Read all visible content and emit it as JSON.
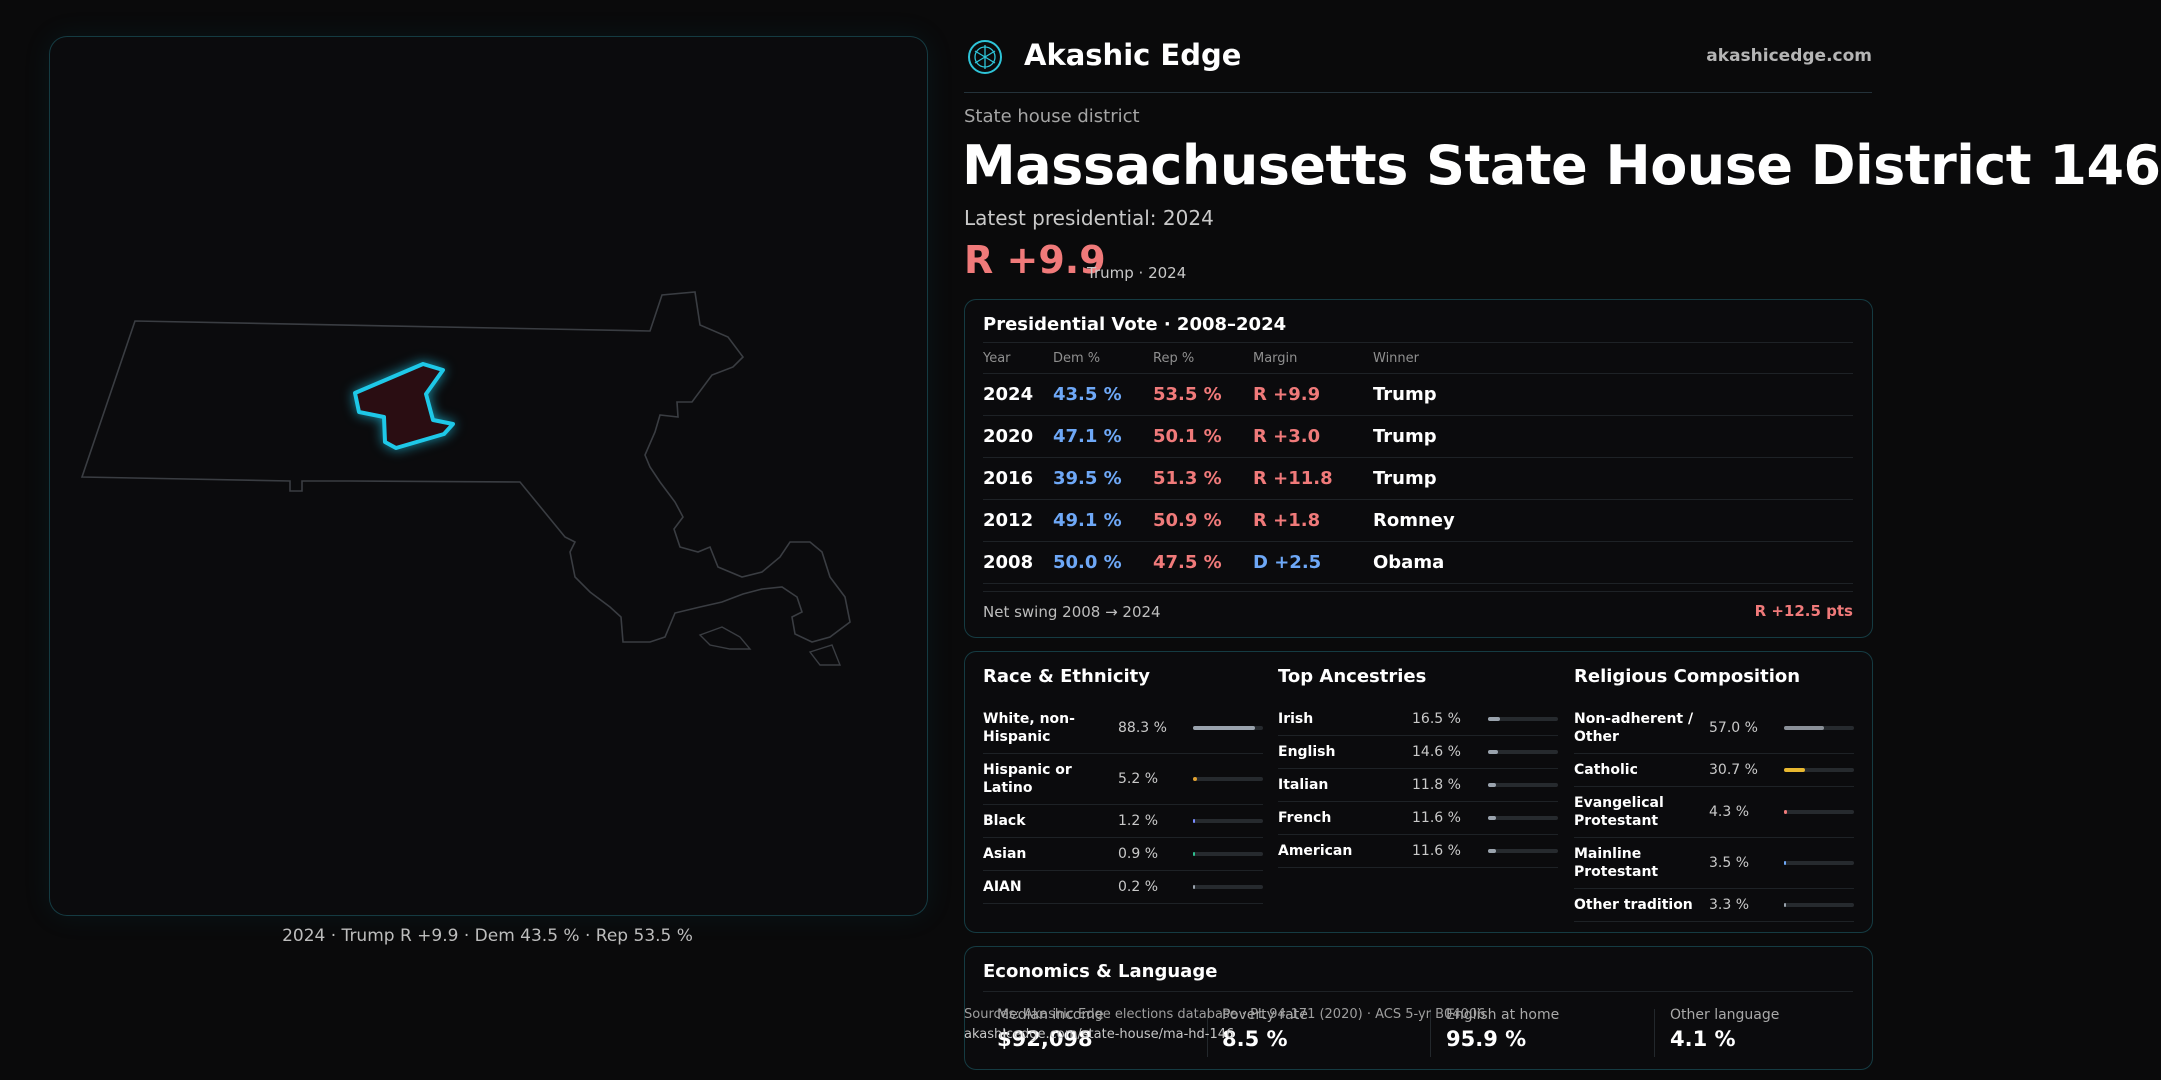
{
  "brand": {
    "name": "Akashic Edge",
    "site": "akashicedge.com",
    "logo_icon": "akashic-logo-icon"
  },
  "district": {
    "type_label": "State house district",
    "title": "Massachusetts State House District 146",
    "latest_label": "Latest presidential: 2024",
    "margin": "R +9.9",
    "margin_sub": "Trump · 2024"
  },
  "map": {
    "caption": "2024 · Trump R +9.9 · Dem 43.5 % · Rep 53.5 %",
    "highlight_color": "#1ec8e8"
  },
  "presidential": {
    "title": "Presidential Vote · 2008–2024",
    "headers": {
      "year": "Year",
      "dem": "Dem %",
      "rep": "Rep %",
      "margin": "Margin",
      "winner": "Winner"
    },
    "rows": [
      {
        "year": "2024",
        "dem": "43.5 %",
        "rep": "53.5 %",
        "margin": "R +9.9",
        "party": "R",
        "winner": "Trump"
      },
      {
        "year": "2020",
        "dem": "47.1 %",
        "rep": "50.1 %",
        "margin": "R +3.0",
        "party": "R",
        "winner": "Trump"
      },
      {
        "year": "2016",
        "dem": "39.5 %",
        "rep": "51.3 %",
        "margin": "R +11.8",
        "party": "R",
        "winner": "Trump"
      },
      {
        "year": "2012",
        "dem": "49.1 %",
        "rep": "50.9 %",
        "margin": "R +1.8",
        "party": "R",
        "winner": "Romney"
      },
      {
        "year": "2008",
        "dem": "50.0 %",
        "rep": "47.5 %",
        "margin": "D +2.5",
        "party": "D",
        "winner": "Obama"
      }
    ],
    "swing_label": "Net swing 2008 → 2024",
    "swing_value": "R +12.5 pts"
  },
  "colors": {
    "dem": "#6ea8f7",
    "rep": "#f07a7a"
  },
  "race": {
    "title": "Race & Ethnicity",
    "items": [
      {
        "label": "White, non-Hispanic",
        "pct": "88.3 %",
        "value": 88.3,
        "color": "#9aa3ad"
      },
      {
        "label": "Hispanic or Latino",
        "pct": "5.2 %",
        "value": 5.2,
        "color": "#e0a030"
      },
      {
        "label": "Black",
        "pct": "1.2 %",
        "value": 1.2,
        "color": "#7a8cff"
      },
      {
        "label": "Asian",
        "pct": "0.9 %",
        "value": 0.9,
        "color": "#2fbf8f"
      },
      {
        "label": "AIAN",
        "pct": "0.2 %",
        "value": 0.2,
        "color": "#9aa3ad"
      }
    ]
  },
  "ancestry": {
    "title": "Top Ancestries",
    "items": [
      {
        "label": "Irish",
        "pct": "16.5 %",
        "value": 16.5,
        "color": "#9aa3ad"
      },
      {
        "label": "English",
        "pct": "14.6 %",
        "value": 14.6,
        "color": "#9aa3ad"
      },
      {
        "label": "Italian",
        "pct": "11.8 %",
        "value": 11.8,
        "color": "#9aa3ad"
      },
      {
        "label": "French",
        "pct": "11.6 %",
        "value": 11.6,
        "color": "#9aa3ad"
      },
      {
        "label": "American",
        "pct": "11.6 %",
        "value": 11.6,
        "color": "#9aa3ad"
      }
    ]
  },
  "religion": {
    "title": "Religious Composition",
    "items": [
      {
        "label": "Non-adherent / Other",
        "pct": "57.0 %",
        "value": 57.0,
        "color": "#8a9098"
      },
      {
        "label": "Catholic",
        "pct": "30.7 %",
        "value": 30.7,
        "color": "#e8b830"
      },
      {
        "label": "Evangelical Protestant",
        "pct": "4.3 %",
        "value": 4.3,
        "color": "#f07a7a"
      },
      {
        "label": "Mainline Protestant",
        "pct": "3.5 %",
        "value": 3.5,
        "color": "#6ea8f7"
      },
      {
        "label": "Other tradition",
        "pct": "3.3 %",
        "value": 3.3,
        "color": "#9aa3ad"
      }
    ]
  },
  "economics": {
    "title": "Economics & Language",
    "metrics": [
      {
        "label": "Median income",
        "value": "$92,098"
      },
      {
        "label": "Poverty rate",
        "value": "8.5 %"
      },
      {
        "label": "English at home",
        "value": "95.9 %"
      },
      {
        "label": "Other language",
        "value": "4.1 %"
      }
    ]
  },
  "sources": {
    "text": "Sources: Akashic Edge elections database · PL 94-171 (2020) · ACS 5-yr B04006",
    "url": "akashicedge.com/state-house/ma-hd-146"
  }
}
